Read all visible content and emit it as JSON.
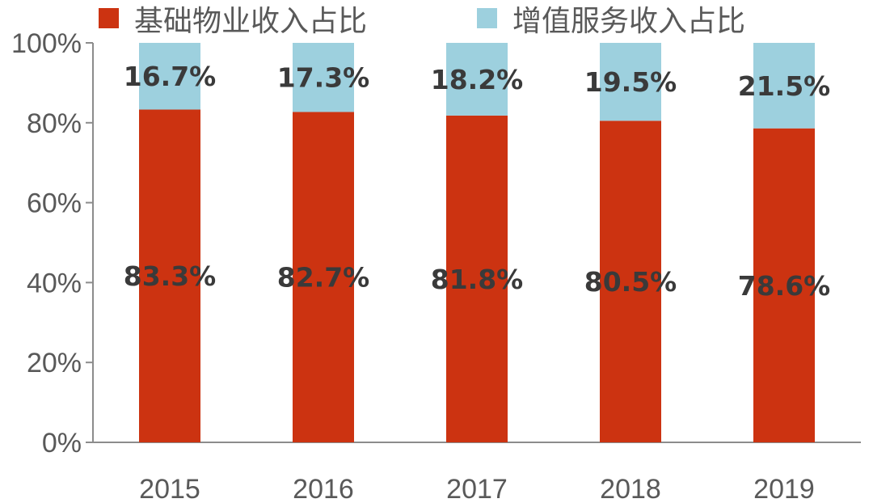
{
  "chart_data": {
    "type": "bar",
    "stacked": true,
    "categories": [
      "2015",
      "2016",
      "2017",
      "2018",
      "2019"
    ],
    "series": [
      {
        "name": "基础物业收入占比",
        "color": "#cc3311",
        "values": [
          83.3,
          82.7,
          81.8,
          80.5,
          78.6
        ],
        "labels": [
          "83.3%",
          "82.7%",
          "81.8%",
          "80.5%",
          "78.6%"
        ]
      },
      {
        "name": "增值服务收入占比",
        "color": "#9dd0de",
        "values": [
          16.7,
          17.3,
          18.2,
          19.5,
          21.5
        ],
        "labels": [
          "16.7%",
          "17.3%",
          "18.2%",
          "19.5%",
          "21.5%"
        ]
      }
    ],
    "ylim": [
      0,
      100
    ],
    "yticks": [
      "0%",
      "20%",
      "40%",
      "60%",
      "80%",
      "100%"
    ],
    "grid": false,
    "legend_position": "top"
  }
}
